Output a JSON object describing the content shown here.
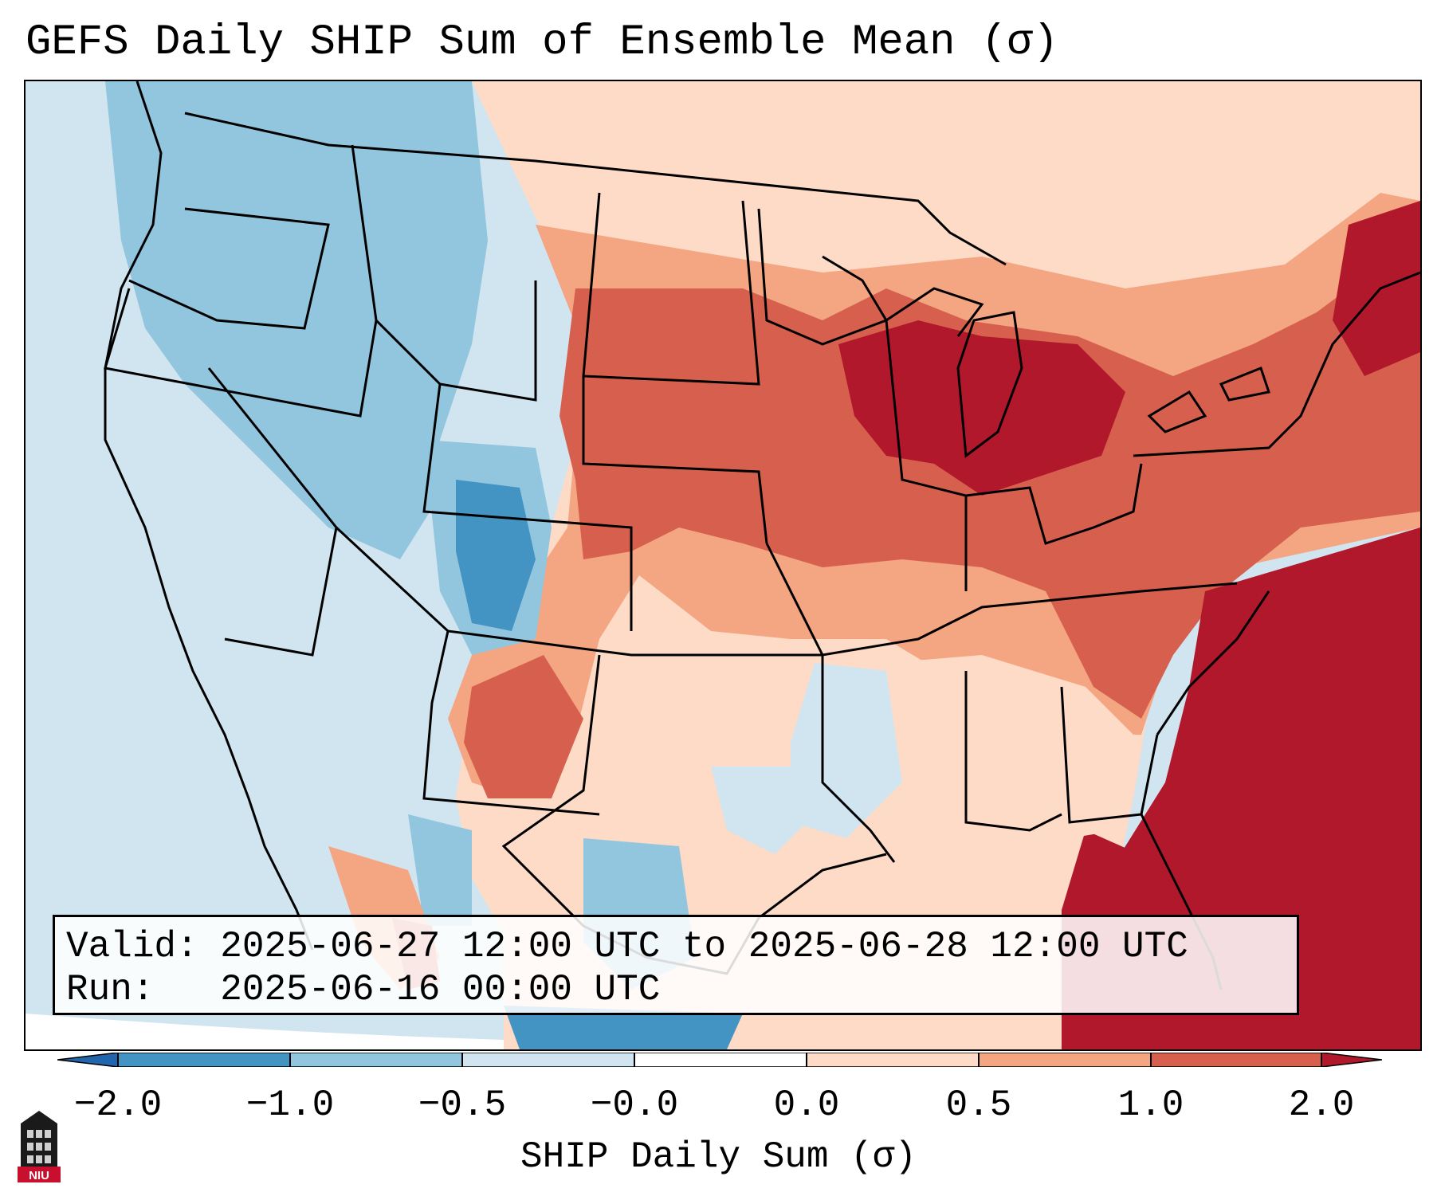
{
  "title": "GEFS Daily SHIP Sum of Ensemble Mean (σ)",
  "info": {
    "valid_label": "Valid:",
    "valid_value": "2025-06-27 12:00 UTC to 2025-06-28 12:00 UTC",
    "run_label": "Run:",
    "run_value": "2025-06-16 00:00 UTC"
  },
  "colorbar": {
    "label": "SHIP Daily Sum (σ)",
    "ticks": [
      "−2.0",
      "−1.0",
      "−0.5",
      "−0.0",
      "0.0",
      "0.5",
      "1.0",
      "2.0"
    ],
    "colors": [
      "#2166ac",
      "#4393c3",
      "#92c5de",
      "#d1e5f0",
      "#ffffff",
      "#fddbc7",
      "#f4a582",
      "#d6604d",
      "#b2182b"
    ]
  },
  "logo": {
    "text": "NIU"
  },
  "palette": {
    "very_low": "#4393c3",
    "low": "#92c5de",
    "slight_low": "#d1e5f0",
    "slight_high": "#fddbc7",
    "high": "#f4a582",
    "higher": "#d6604d",
    "highest": "#b2182b",
    "ocean_edge": "#ffffff"
  }
}
